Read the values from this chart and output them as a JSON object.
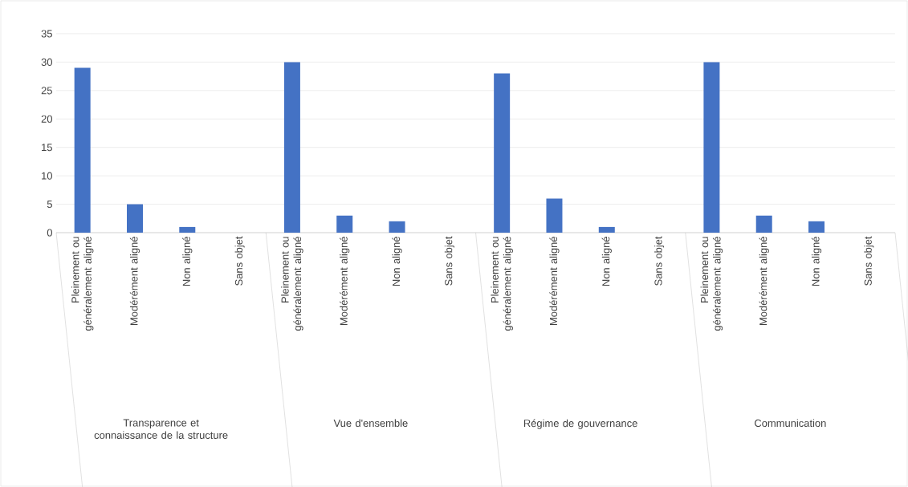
{
  "chart_data": {
    "type": "bar",
    "categories": [
      "Pleinement ou généralement aligné",
      "Modérément aligné",
      "Non aligné",
      "Sans objet",
      "Pleinement ou généralement aligné",
      "Modérément aligné",
      "Non aligné",
      "Sans objet",
      "Pleinement ou généralement aligné",
      "Modérément aligné",
      "Non aligné",
      "Sans objet",
      "Pleinement ou généralement aligné",
      "Modérément aligné",
      "Non aligné",
      "Sans objet"
    ],
    "values": [
      29,
      5,
      1,
      0,
      30,
      3,
      2,
      0,
      28,
      6,
      1,
      0,
      30,
      3,
      2,
      0
    ],
    "color": "#4472c4",
    "ylim": [
      0,
      35
    ],
    "yticks": [
      0,
      5,
      10,
      15,
      20,
      25,
      30,
      35
    ],
    "grid": "y",
    "annotations": [
      "Transparence et connaissance de la structure",
      "Vue d'ensemble",
      "Régime de gouvernance",
      "Communication"
    ]
  }
}
